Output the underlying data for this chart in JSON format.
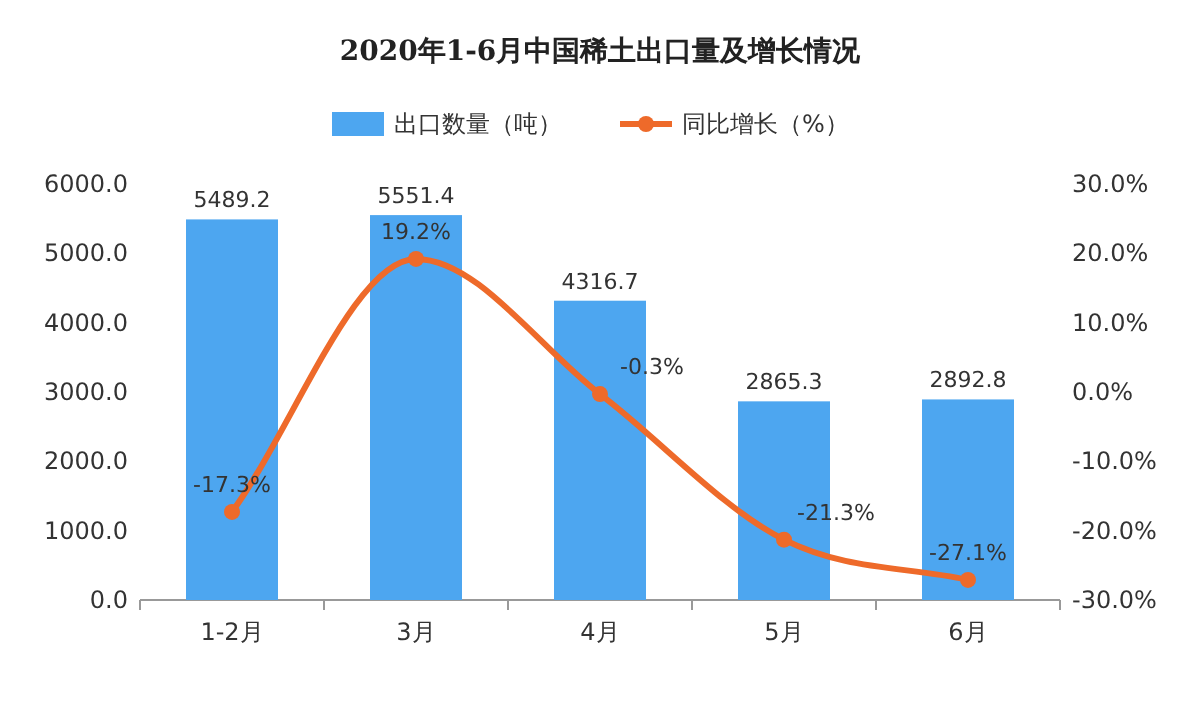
{
  "chart_data": {
    "type": "bar",
    "title": "2020年1-6月中国稀土出口量及增长情况",
    "categories": [
      "1-2月",
      "3月",
      "4月",
      "5月",
      "6月"
    ],
    "series": [
      {
        "name": "出口数量（吨）",
        "color": "#4da6f0",
        "values": [
          5489.2,
          5551.4,
          4316.7,
          2865.3,
          2892.8
        ]
      },
      {
        "name": "同比增长（%）",
        "type": "line",
        "axis": "y2",
        "color": "#ee6a2a",
        "values": [
          -17.3,
          19.2,
          -0.3,
          -21.3,
          -27.1
        ],
        "value_labels": [
          "-17.3%",
          "19.2%",
          "-0.3%",
          "-21.3%",
          "-27.1%"
        ]
      }
    ],
    "ylim": [
      0,
      6000
    ],
    "yticks": [
      {
        "value": 0,
        "label": "0.0"
      },
      {
        "value": 1000,
        "label": "1000.0"
      },
      {
        "value": 2000,
        "label": "2000.0"
      },
      {
        "value": 3000,
        "label": "3000.0"
      },
      {
        "value": 4000,
        "label": "4000.0"
      },
      {
        "value": 5000,
        "label": "5000.0"
      },
      {
        "value": 6000,
        "label": "6000.0"
      }
    ],
    "y2lim": [
      -30,
      30
    ],
    "y2ticks": [
      {
        "value": -30,
        "label": "-30.0%"
      },
      {
        "value": -20,
        "label": "-20.0%"
      },
      {
        "value": -10,
        "label": "-10.0%"
      },
      {
        "value": 0,
        "label": "0.0%"
      },
      {
        "value": 10,
        "label": "10.0%"
      },
      {
        "value": 20,
        "label": "20.0%"
      },
      {
        "value": 30,
        "label": "30.0%"
      }
    ],
    "legend": "top",
    "marker": "circle",
    "data_labels": true
  }
}
